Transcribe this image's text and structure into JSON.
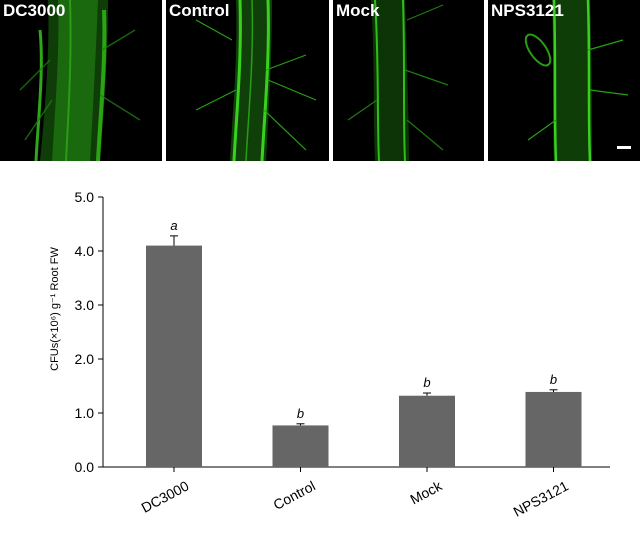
{
  "panels": [
    {
      "label": "DC3000"
    },
    {
      "label": "Control"
    },
    {
      "label": "Mock"
    },
    {
      "label": "NPS3121"
    }
  ],
  "colors": {
    "fluorescence": "#39d11e",
    "bar": "#666666",
    "axis": "#000000"
  },
  "chart_data": {
    "type": "bar",
    "categories": [
      "DC3000",
      "Control",
      "Mock",
      "NPS3121"
    ],
    "values": [
      4.1,
      0.77,
      1.32,
      1.39
    ],
    "errors": [
      0.18,
      0.03,
      0.05,
      0.04
    ],
    "significance": [
      "a",
      "b",
      "b",
      "b"
    ],
    "ylabel": "CFUs(×10⁶) g⁻¹ Root FW",
    "ylim": [
      0,
      5
    ],
    "yticks": [
      "0.0",
      "1.0",
      "2.0",
      "3.0",
      "4.0",
      "5.0"
    ]
  }
}
